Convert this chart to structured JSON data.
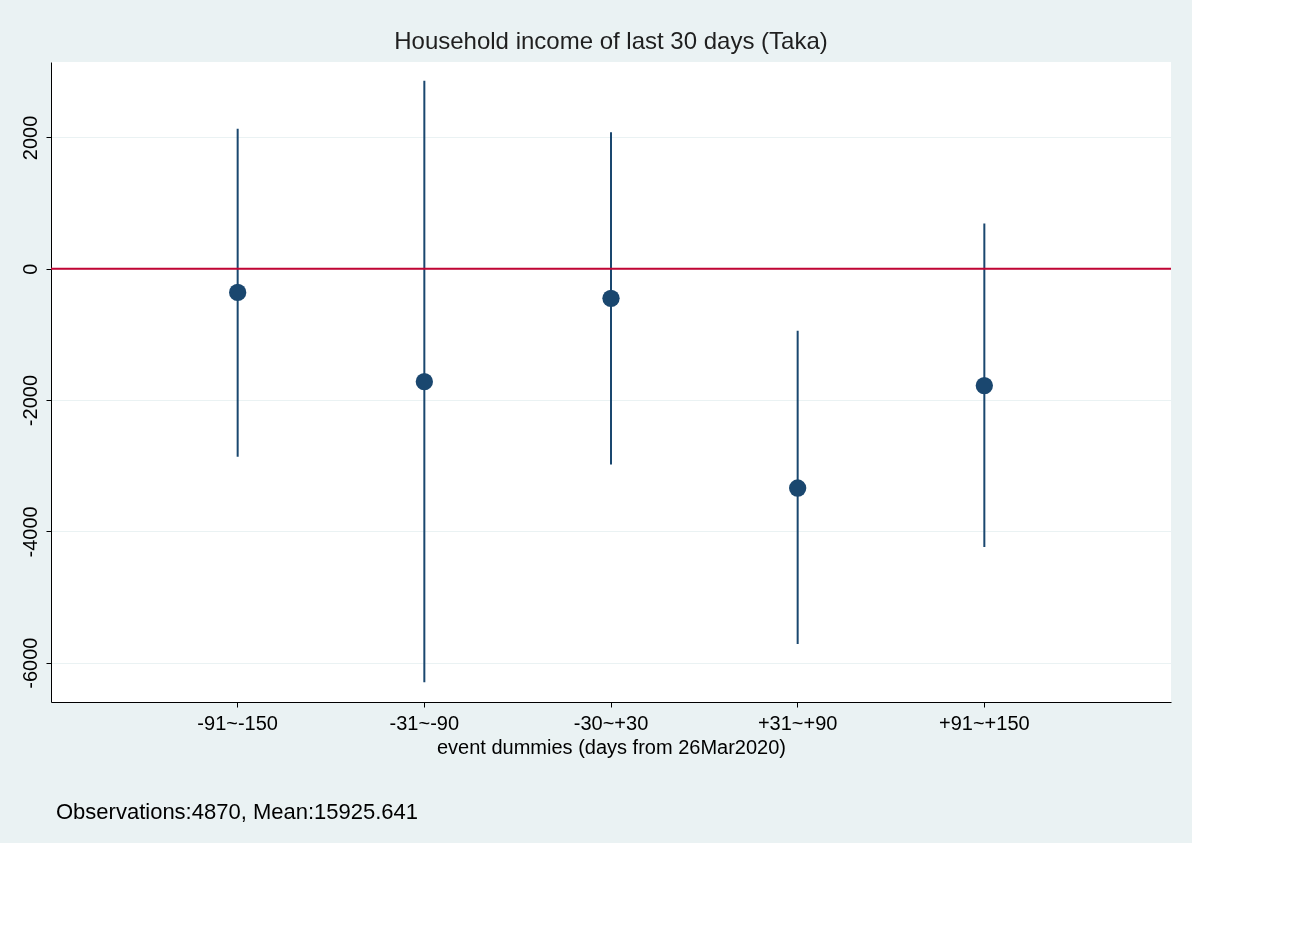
{
  "chart_data": {
    "type": "scatter",
    "title": "Household income of last 30 days (Taka)",
    "xlabel": "event dummies (days from 26Mar2020)",
    "categories": [
      "-91~-150",
      "-31~-90",
      "-30~+30",
      "+31~+90",
      "+91~+150"
    ],
    "series": [
      {
        "color": "#1a476f",
        "values": [
          -360,
          -1720,
          -450,
          -3340,
          -1780
        ],
        "errors": [
          [
            -2865,
            2135
          ],
          [
            -6300,
            2865
          ],
          [
            -2980,
            2080
          ],
          [
            -5715,
            -945
          ],
          [
            -4240,
            690
          ]
        ]
      }
    ],
    "ylim": [
      -6600,
      3150
    ],
    "yticks": [
      -6000,
      -4000,
      -2000,
      0,
      2000
    ],
    "grid": "y",
    "marker": "circle",
    "ref_lines": [
      {
        "axis": "y",
        "value": 0,
        "color": "#c10534"
      }
    ],
    "annotations": [
      "Observations:4870, Mean:15925.641"
    ]
  }
}
